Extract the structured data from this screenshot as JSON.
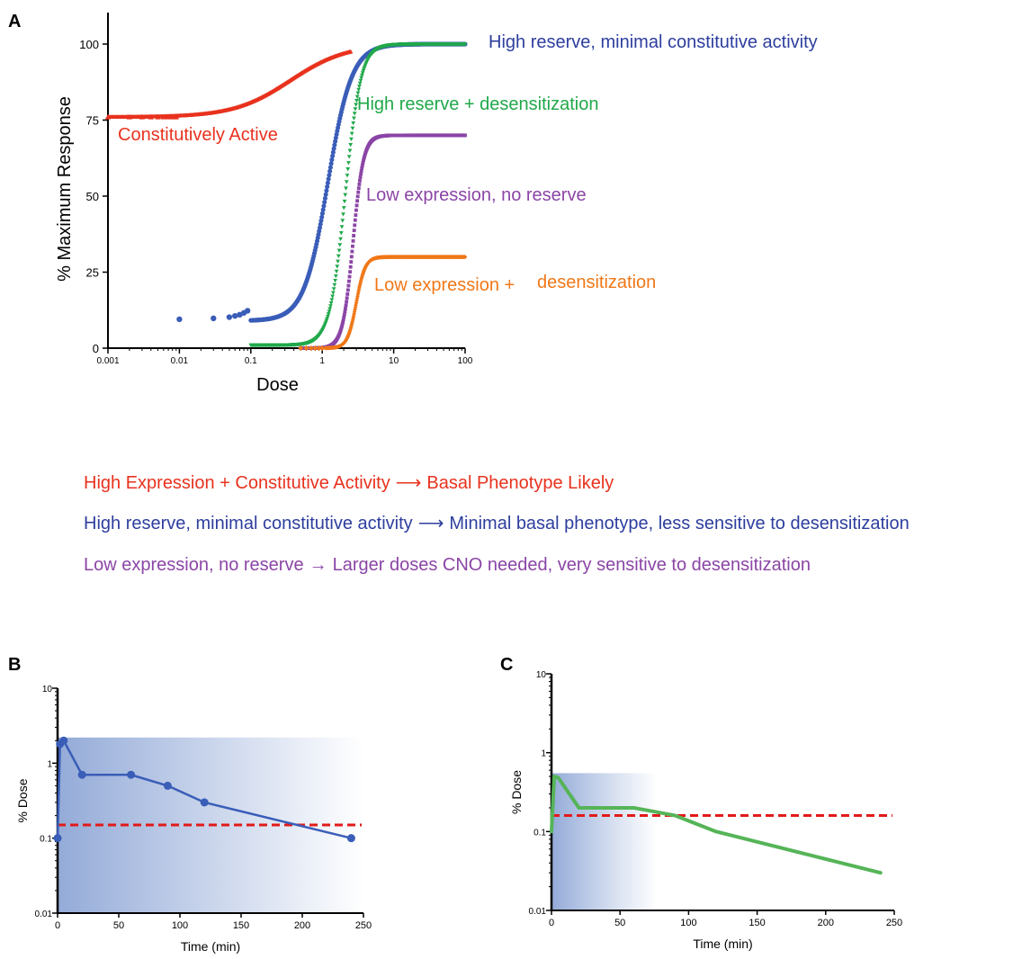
{
  "colors": {
    "red": "#e8321e",
    "blue": "#2d3e9e",
    "blue_curve": "#3a5db8",
    "green": "#20a84a",
    "green_curve": "#55b457",
    "purple": "#8b45a6",
    "orange": "#f07818",
    "dashed": "#e21a1a",
    "shade": "#3c66b8"
  },
  "legend": {
    "line1": {
      "left": "High Expression + Constitutive Activity",
      "arrow": "⟶",
      "right": "Basal Phenotype Likely",
      "color": "#e8321e"
    },
    "line2": {
      "left": "High reserve, minimal constitutive activity",
      "arrow": "⟶",
      "right": "Minimal basal phenotype,  less sensitive to desensitization",
      "color": "#2d3e9e"
    },
    "line3": {
      "left": "Low expression, no reserve",
      "arrow": "→",
      "right": "Larger doses CNO needed, very sensitive to desensitization",
      "color": "#8b45a6"
    }
  },
  "chart_data": [
    {
      "panel": "A",
      "type": "scatter",
      "xlabel": "Dose",
      "ylabel": "% Maximum Response",
      "xscale": "log",
      "xlim": [
        0.001,
        100
      ],
      "ylim": [
        0,
        100
      ],
      "x_ticks": [
        "0.001",
        "0.01",
        "0.1",
        "1",
        "10",
        "100"
      ],
      "y_ticks": [
        "0",
        "25",
        "50",
        "75",
        "100"
      ],
      "series": [
        {
          "name": "Constitutively Active",
          "marker": "triangle-up",
          "color": "#e8321e",
          "curve": {
            "bottom": 76,
            "top": 100,
            "ec50": 0.35,
            "hill": 1.1
          },
          "x_from": 0.001,
          "x_to": 2.5,
          "sparse_points": [
            [
              0.001,
              76
            ],
            [
              0.002,
              76
            ],
            [
              0.003,
              76
            ],
            [
              0.004,
              76
            ],
            [
              0.005,
              76
            ],
            [
              0.006,
              76
            ],
            [
              0.007,
              76
            ],
            [
              0.008,
              76
            ],
            [
              0.009,
              76
            ]
          ]
        },
        {
          "name": "High reserve, minimal constitutive activity",
          "marker": "circle",
          "color": "#3a5db8",
          "curve": {
            "bottom": 9,
            "top": 100,
            "ec50": 1.2,
            "hill": 2.6
          },
          "x_from": 0.1,
          "x_to": 100,
          "sparse_points": [
            [
              0.01,
              9.5
            ],
            [
              0.03,
              9.8
            ],
            [
              0.05,
              10.2
            ],
            [
              0.06,
              10.6
            ],
            [
              0.07,
              11
            ],
            [
              0.08,
              11.6
            ],
            [
              0.09,
              12.3
            ]
          ]
        },
        {
          "name": "High reserve + desensitization",
          "marker": "triangle-down",
          "color": "#20a84a",
          "curve": {
            "bottom": 1,
            "top": 100,
            "ec50": 2.1,
            "hill": 4
          },
          "x_from": 0.1,
          "x_to": 100,
          "sparse_points": []
        },
        {
          "name": "Low expression, no reserve",
          "marker": "square",
          "color": "#8b45a6",
          "curve": {
            "bottom": 0,
            "top": 70,
            "ec50": 2.7,
            "hill": 6
          },
          "x_from": 0.5,
          "x_to": 100,
          "sparse_points": []
        },
        {
          "name": "Low expression + desensitization",
          "marker": "diamond",
          "color": "#f07818",
          "curve": {
            "bottom": 0,
            "top": 30,
            "ec50": 3.0,
            "hill": 7
          },
          "x_from": 1.1,
          "x_to": 100,
          "sparse_points": [
            [
              0.5,
              0
            ],
            [
              0.6,
              0
            ],
            [
              0.7,
              0
            ],
            [
              0.8,
              0
            ],
            [
              0.9,
              0
            ],
            [
              1.0,
              0
            ]
          ]
        }
      ],
      "annotations": [
        {
          "text": "Constitutively Active",
          "color": "#e8321e"
        },
        {
          "text": "High reserve, minimal constitutive activity",
          "color": "#2d3e9e"
        },
        {
          "text": "High reserve + desensitization",
          "color": "#20a84a"
        },
        {
          "text": "Low expression, no reserve",
          "color": "#8b45a6"
        },
        {
          "text": "Low expression +",
          "color": "#f07818"
        },
        {
          "text": "desensitization",
          "color": "#f07818"
        }
      ]
    },
    {
      "panel": "B",
      "type": "line",
      "xlabel": "Time (min)",
      "ylabel": "% Dose",
      "yscale": "log",
      "xlim": [
        0,
        250
      ],
      "ylim": [
        0.01,
        10
      ],
      "x_ticks": [
        "0",
        "50",
        "100",
        "150",
        "200",
        "250"
      ],
      "y_ticks": [
        "0.01",
        "0.1",
        "1",
        "10"
      ],
      "series": [
        {
          "name": "",
          "color": "#3a5db8",
          "markers": true,
          "x": [
            0,
            2,
            5,
            20,
            60,
            90,
            120,
            240
          ],
          "y": [
            0.1,
            1.8,
            2.0,
            0.7,
            0.7,
            0.5,
            0.3,
            0.1
          ]
        }
      ],
      "threshold": 0.15,
      "shaded_region": {
        "x": [
          0,
          250
        ],
        "y_top": 2.2
      }
    },
    {
      "panel": "C",
      "type": "line",
      "xlabel": "Time (min)",
      "ylabel": "% Dose",
      "yscale": "log",
      "xlim": [
        0,
        250
      ],
      "ylim": [
        0.01,
        10
      ],
      "x_ticks": [
        "0",
        "50",
        "100",
        "150",
        "200",
        "250"
      ],
      "y_ticks": [
        "0.01",
        "0.1",
        "1",
        "10"
      ],
      "series": [
        {
          "name": "",
          "color": "#55b457",
          "markers": false,
          "x": [
            0,
            2,
            5,
            20,
            60,
            90,
            120,
            240
          ],
          "y": [
            0.1,
            0.5,
            0.48,
            0.2,
            0.2,
            0.16,
            0.1,
            0.03
          ]
        }
      ],
      "threshold": 0.16,
      "shaded_region": {
        "x": [
          0,
          77
        ],
        "y_top": 0.55
      }
    }
  ],
  "panel_labels": [
    "A",
    "B",
    "C"
  ]
}
